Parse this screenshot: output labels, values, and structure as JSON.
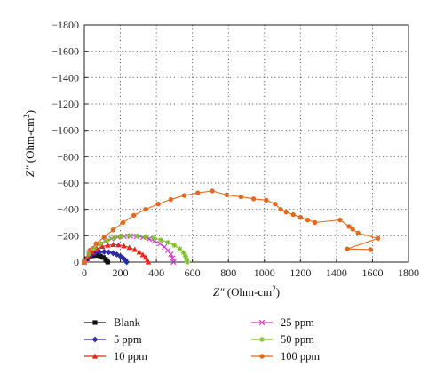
{
  "chart_data": {
    "type": "scatter",
    "xlabel_main": "Z″",
    "xlabel_unit": " (Ohm-cm",
    "xlabel_sup": "2",
    "xlabel_end": ")",
    "ylabel_main": "Z″",
    "ylabel_unit": " (Ohm-cm",
    "ylabel_sup": "2",
    "ylabel_end": ")",
    "xlim": [
      0,
      1800
    ],
    "ylim": [
      0,
      -1800
    ],
    "x_ticks": [
      0,
      200,
      400,
      600,
      800,
      1000,
      1200,
      1400,
      1600,
      1800
    ],
    "y_ticks": [
      0,
      -200,
      -400,
      -600,
      -800,
      -1000,
      -1200,
      -1400,
      -1600,
      -1800
    ],
    "x_tick_labels": [
      "0",
      "200",
      "400",
      "600",
      "800",
      "1000",
      "1200",
      "1400",
      "1600",
      "1800"
    ],
    "y_tick_labels": [
      "0",
      "−200",
      "−400",
      "−600",
      "−800",
      "−1000",
      "−1200",
      "−1400",
      "−1600",
      "−1800"
    ],
    "grid": "dotted",
    "legend_position": "bottom",
    "series": [
      {
        "name": "Blank",
        "color": "#111111",
        "marker": "square",
        "x": [
          0,
          15,
          30,
          45,
          60,
          75,
          90,
          105,
          118,
          125,
          130
        ],
        "y": [
          0,
          -25,
          -40,
          -48,
          -52,
          -50,
          -45,
          -35,
          -22,
          -10,
          0
        ]
      },
      {
        "name": "5 ppm",
        "color": "#2c2ca0",
        "marker": "diamond",
        "x": [
          0,
          20,
          40,
          60,
          85,
          110,
          135,
          160,
          180,
          200,
          215,
          228,
          235
        ],
        "y": [
          0,
          -35,
          -55,
          -68,
          -76,
          -78,
          -75,
          -68,
          -58,
          -45,
          -30,
          -15,
          0
        ]
      },
      {
        "name": "10 ppm",
        "color": "#e8251a",
        "marker": "triangle",
        "x": [
          0,
          20,
          45,
          70,
          100,
          130,
          160,
          190,
          220,
          250,
          280,
          305,
          325,
          340,
          350,
          355
        ],
        "y": [
          0,
          -45,
          -75,
          -100,
          -118,
          -128,
          -132,
          -130,
          -122,
          -110,
          -95,
          -75,
          -55,
          -35,
          -15,
          0
        ]
      },
      {
        "name": "25 ppm",
        "color": "#c63cc0",
        "marker": "x",
        "x": [
          0,
          25,
          50,
          80,
          115,
          150,
          185,
          220,
          255,
          290,
          325,
          360,
          390,
          420,
          445,
          465,
          480,
          490,
          495
        ],
        "y": [
          0,
          -60,
          -100,
          -135,
          -160,
          -178,
          -190,
          -196,
          -198,
          -195,
          -188,
          -175,
          -160,
          -140,
          -115,
          -88,
          -60,
          -30,
          0
        ]
      },
      {
        "name": "50 ppm",
        "color": "#7fbf2f",
        "marker": "star",
        "x": [
          0,
          25,
          55,
          90,
          125,
          165,
          205,
          250,
          295,
          340,
          385,
          425,
          465,
          500,
          530,
          550,
          562,
          568,
          572
        ],
        "y": [
          0,
          -62,
          -105,
          -140,
          -165,
          -185,
          -195,
          -200,
          -198,
          -192,
          -182,
          -168,
          -150,
          -128,
          -100,
          -72,
          -45,
          -20,
          0
        ]
      },
      {
        "name": "100 ppm",
        "color": "#e06a20",
        "marker": "circle",
        "x": [
          0,
          30,
          65,
          110,
          160,
          215,
          275,
          340,
          410,
          480,
          555,
          630,
          710,
          790,
          870,
          940,
          1010,
          1060,
          1090,
          1120,
          1160,
          1200,
          1240,
          1280,
          1420,
          1470,
          1490,
          1520,
          1630,
          1460,
          1590
        ],
        "y": [
          0,
          -90,
          -140,
          -190,
          -245,
          -300,
          -355,
          -400,
          -440,
          -475,
          -505,
          -525,
          -540,
          -510,
          -495,
          -480,
          -470,
          -440,
          -400,
          -380,
          -360,
          -340,
          -320,
          -300,
          -320,
          -270,
          -250,
          -220,
          -180,
          -100,
          -95
        ]
      }
    ]
  }
}
